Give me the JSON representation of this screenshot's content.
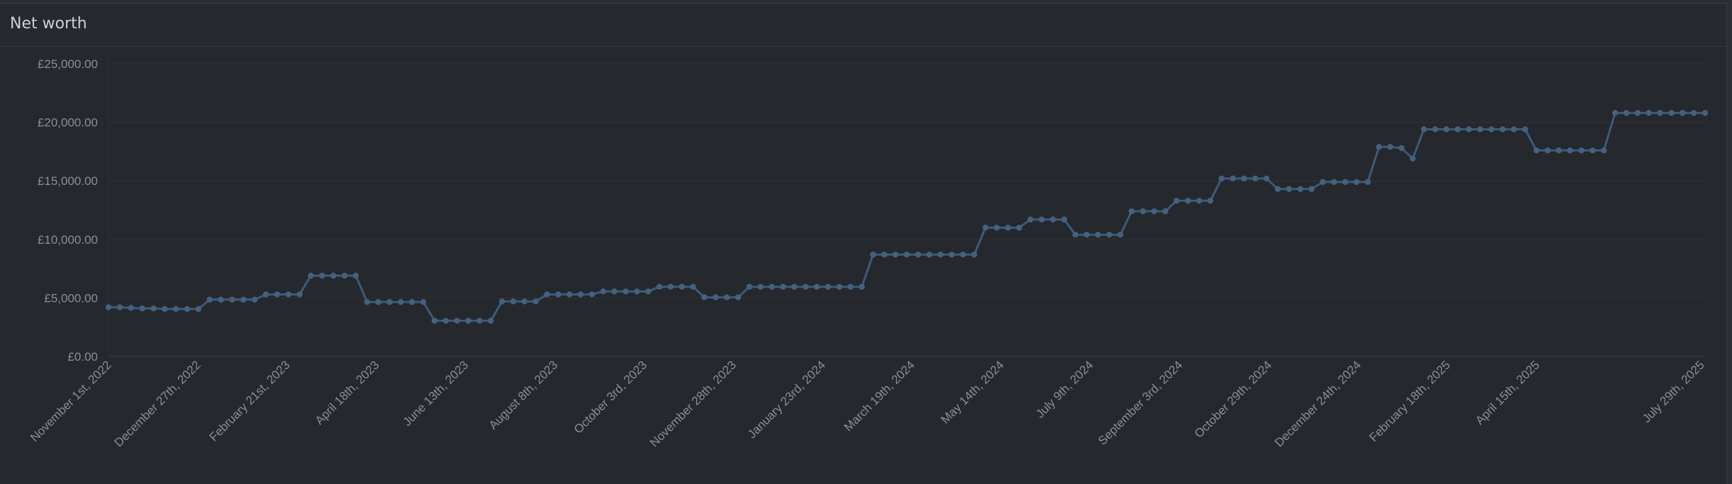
{
  "panel": {
    "title": "Net worth"
  },
  "colors": {
    "background": "#25282c",
    "grid": "#303338",
    "axis_text": "#8a8f96",
    "line": "#3e5a7a",
    "marker": "#45617f"
  },
  "chart_data": {
    "type": "line",
    "title": "Net worth",
    "xlabel": "",
    "ylabel": "",
    "ylim": [
      0,
      25000
    ],
    "y_ticks": [
      0,
      5000,
      10000,
      15000,
      20000,
      25000
    ],
    "y_tick_labels": [
      "£0.00",
      "£5,000.00",
      "£10,000.00",
      "£15,000.00",
      "£20,000.00",
      "£25,000.00"
    ],
    "x_tick_labels": [
      "November 1st, 2022",
      "December 27th, 2022",
      "February 21st, 2023",
      "April 18th, 2023",
      "June 13th, 2023",
      "August 8th, 2023",
      "October 3rd, 2023",
      "November 28th, 2023",
      "January 23rd, 2024",
      "March 19th, 2024",
      "May 14th, 2024",
      "July 9th, 2024",
      "September 3rd, 2024",
      "October 29th, 2024",
      "December 24th, 2024",
      "February 18th, 2025",
      "April 15th, 2025",
      "July 29th, 2025"
    ],
    "grid": true,
    "legend": "none",
    "series": [
      {
        "values": [
          4200,
          4200,
          4150,
          4100,
          4100,
          4050,
          4050,
          4050,
          4050,
          4850,
          4850,
          4850,
          4850,
          4850,
          5300,
          5300,
          5300,
          5300,
          6900,
          6900,
          6900,
          6900,
          6900,
          4650,
          4650,
          4650,
          4650,
          4650,
          4650,
          3050,
          3050,
          3050,
          3050,
          3050,
          3050,
          4700,
          4700,
          4700,
          4700,
          5300,
          5300,
          5300,
          5300,
          5300,
          5550,
          5550,
          5550,
          5550,
          5550,
          5950,
          5950,
          5950,
          5950,
          5050,
          5050,
          5050,
          5050,
          5950,
          5950,
          5950,
          5950,
          5950,
          5950,
          5950,
          5950,
          5950,
          5950,
          5950,
          8700,
          8700,
          8700,
          8700,
          8700,
          8700,
          8700,
          8700,
          8700,
          8700,
          11000,
          11000,
          11000,
          11000,
          11700,
          11700,
          11700,
          11700,
          10400,
          10400,
          10400,
          10400,
          10400,
          12400,
          12400,
          12400,
          12400,
          13300,
          13300,
          13300,
          13300,
          15200,
          15200,
          15200,
          15200,
          15200,
          14300,
          14300,
          14300,
          14300,
          14900,
          14900,
          14900,
          14900,
          14900,
          17900,
          17900,
          17800,
          16900,
          19400,
          19400,
          19400,
          19400,
          19400,
          19400,
          19400,
          19400,
          19400,
          19400,
          17600,
          17600,
          17600,
          17600,
          17600,
          17600,
          17600,
          20800,
          20800,
          20800,
          20800,
          20800,
          20800,
          20800,
          20800,
          20800
        ]
      }
    ]
  }
}
